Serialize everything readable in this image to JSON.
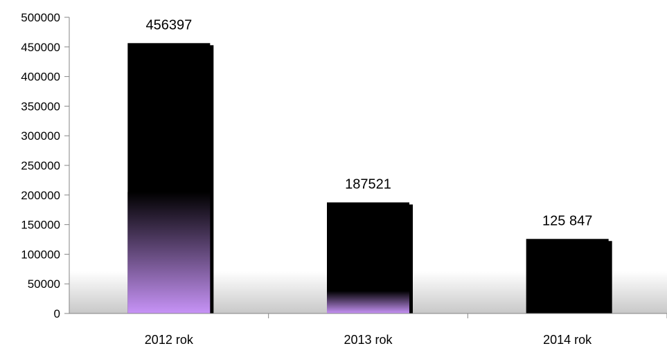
{
  "chart_data": {
    "type": "bar",
    "categories": [
      "2012 rok",
      "2013 rok",
      "2014 rok"
    ],
    "values": [
      456397,
      187521,
      125847
    ],
    "data_labels": [
      "456397",
      "187521",
      "125 847"
    ],
    "ylim": [
      0,
      500000
    ],
    "yticks": [
      0,
      50000,
      100000,
      150000,
      200000,
      250000,
      300000,
      350000,
      400000,
      450000,
      500000
    ],
    "ytick_labels": [
      "0",
      "50000",
      "100000",
      "150000",
      "200000",
      "250000",
      "300000",
      "350000",
      "400000",
      "450000",
      "500000"
    ],
    "grid": false,
    "legend": "none",
    "bar_color": "#000000",
    "bar_gradient_color": "#c793f7",
    "floor_gradient_color": "#c8c8c8"
  }
}
